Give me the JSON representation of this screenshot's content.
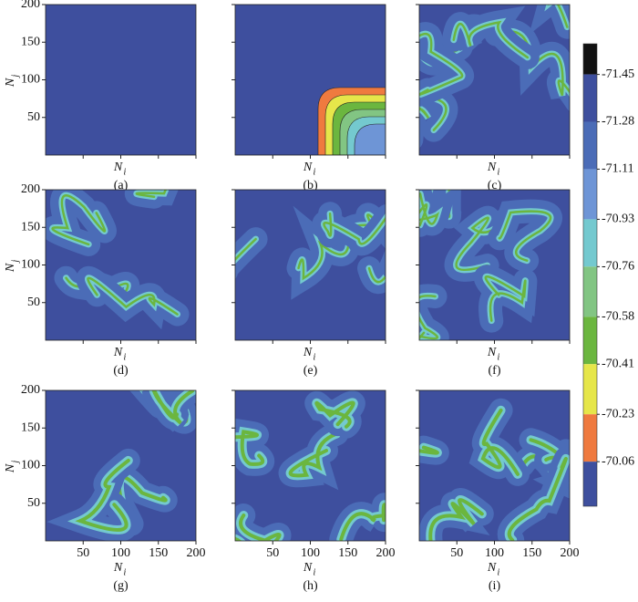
{
  "chart_data": {
    "type": "contour-grid",
    "panels": [
      {
        "label": "(a)"
      },
      {
        "label": "(b)"
      },
      {
        "label": "(c)"
      },
      {
        "label": "(d)"
      },
      {
        "label": "(e)"
      },
      {
        "label": "(f)"
      },
      {
        "label": "(g)"
      },
      {
        "label": "(h)"
      },
      {
        "label": "(i)"
      }
    ],
    "x_label": "N",
    "x_label_sub": "i",
    "y_label": "N",
    "y_label_sub": "j",
    "xlim": [
      0,
      200
    ],
    "ylim": [
      0,
      200
    ],
    "xticks": [
      50,
      100,
      150,
      200
    ],
    "yticks": [
      50,
      100,
      150,
      200
    ],
    "colorbar": {
      "lim": [
        -71.56,
        -69.9
      ],
      "ticks": [
        -71.45,
        -71.28,
        -71.11,
        -70.93,
        -70.76,
        -70.58,
        -70.41,
        -70.23,
        -70.06
      ],
      "colors": [
        "#111111",
        "#3e4f9e",
        "#4b6cb7",
        "#6e95d6",
        "#74c9cf",
        "#82c583",
        "#6bb63f",
        "#e6e64a",
        "#ef7a3f",
        "#3e4f9e"
      ]
    }
  }
}
